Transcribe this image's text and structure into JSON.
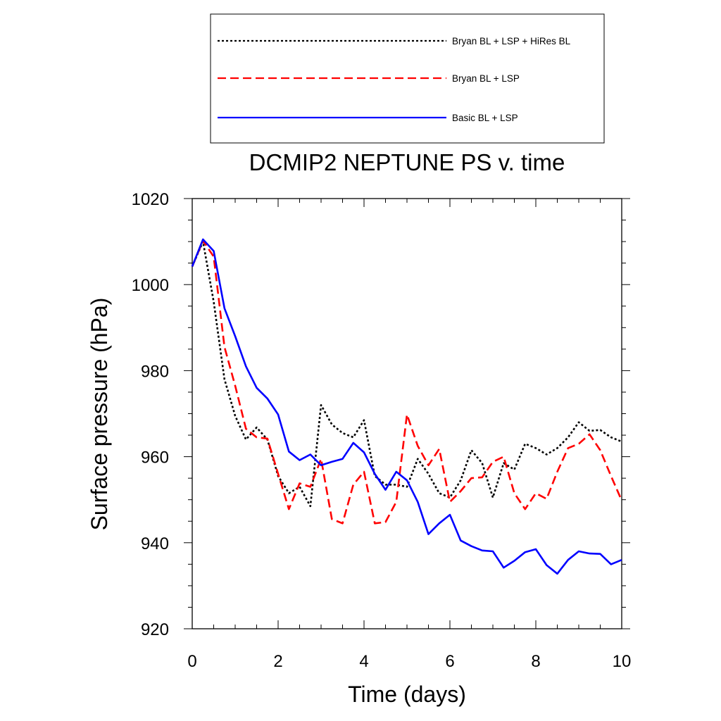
{
  "chart_data": {
    "type": "line",
    "title": "DCMIP2 NEPTUNE PS v. time",
    "xlabel": "Time (days)",
    "ylabel": "Surface pressure (hPa)",
    "xlim": [
      0,
      10
    ],
    "ylim": [
      920,
      1020
    ],
    "xticks": [
      0,
      2,
      4,
      6,
      8,
      10
    ],
    "xtick_labels": [
      "0",
      "2",
      "4",
      "6",
      "8",
      "10"
    ],
    "yticks": [
      920,
      940,
      960,
      980,
      1000,
      1020
    ],
    "ytick_labels": [
      "920",
      "940",
      "960",
      "980",
      "1000",
      "1020"
    ],
    "grid": false,
    "legend_position": "top",
    "series": [
      {
        "name": "Bryan BL + LSP + HiRes BL",
        "color": "#000000",
        "style": "dotted",
        "x": [
          0,
          0.25,
          0.5,
          0.75,
          1.0,
          1.25,
          1.5,
          1.75,
          2.0,
          2.25,
          2.5,
          2.75,
          3.0,
          3.25,
          3.5,
          3.75,
          4.0,
          4.25,
          4.5,
          4.75,
          5.0,
          5.25,
          5.5,
          5.75,
          6.0,
          6.25,
          6.5,
          6.75,
          7.0,
          7.25,
          7.5,
          7.75,
          8.0,
          8.25,
          8.5,
          8.75,
          9.0,
          9.25,
          9.5,
          9.75,
          10.0
        ],
        "values": [
          1004.2,
          1010.0,
          996.0,
          978.0,
          969.5,
          964.0,
          966.8,
          964.0,
          955.5,
          951.5,
          953.0,
          948.5,
          972.0,
          967.5,
          965.5,
          964.5,
          968.5,
          955.5,
          953.5,
          953.5,
          953.0,
          959.5,
          956.0,
          951.5,
          950.5,
          954.5,
          961.5,
          958.5,
          950.5,
          958.5,
          957.0,
          963.0,
          962.0,
          960.5,
          962.0,
          964.5,
          968.0,
          966.0,
          966.2,
          964.5,
          963.5
        ]
      },
      {
        "name": "Bryan BL + LSP",
        "color": "#ff0000",
        "style": "dashed",
        "x": [
          0,
          0.25,
          0.5,
          0.75,
          1.0,
          1.25,
          1.5,
          1.75,
          2.0,
          2.25,
          2.5,
          2.75,
          3.0,
          3.25,
          3.5,
          3.75,
          4.0,
          4.25,
          4.5,
          4.75,
          5.0,
          5.25,
          5.5,
          5.75,
          6.0,
          6.25,
          6.5,
          6.75,
          7.0,
          7.25,
          7.5,
          7.75,
          8.0,
          8.25,
          8.5,
          8.75,
          9.0,
          9.25,
          9.5,
          9.75,
          10.0
        ],
        "values": [
          1004.2,
          1010.2,
          1006.5,
          985.5,
          976.5,
          966.5,
          964.5,
          964.2,
          956.0,
          947.8,
          953.8,
          953.0,
          959.5,
          945.5,
          944.5,
          953.5,
          956.5,
          944.5,
          944.8,
          949.5,
          969.8,
          962.5,
          958.0,
          961.8,
          949.5,
          952.0,
          955.0,
          955.2,
          958.8,
          960.0,
          951.5,
          947.8,
          951.5,
          950.2,
          956.5,
          962.0,
          963.0,
          965.2,
          961.5,
          955.5,
          949.8
        ]
      },
      {
        "name": "Basic BL + LSP",
        "color": "#0000ff",
        "style": "solid",
        "x": [
          0,
          0.25,
          0.5,
          0.75,
          1.0,
          1.25,
          1.5,
          1.75,
          2.0,
          2.25,
          2.5,
          2.75,
          3.0,
          3.25,
          3.5,
          3.75,
          4.0,
          4.25,
          4.5,
          4.75,
          5.0,
          5.25,
          5.5,
          5.75,
          6.0,
          6.25,
          6.5,
          6.75,
          7.0,
          7.25,
          7.5,
          7.75,
          8.0,
          8.25,
          8.5,
          8.75,
          9.0,
          9.25,
          9.5,
          9.75,
          10.0
        ],
        "values": [
          1004.2,
          1010.5,
          1007.8,
          994.5,
          988.0,
          981.0,
          976.0,
          973.5,
          969.8,
          961.2,
          959.2,
          960.5,
          958.0,
          958.8,
          959.5,
          963.2,
          961.0,
          956.0,
          952.3,
          956.5,
          954.5,
          949.5,
          942.0,
          944.5,
          946.5,
          940.5,
          939.2,
          938.2,
          938.0,
          934.2,
          935.8,
          937.8,
          938.5,
          934.8,
          932.8,
          936.0,
          938.0,
          937.5,
          937.4,
          935.0,
          936.0
        ]
      }
    ]
  }
}
